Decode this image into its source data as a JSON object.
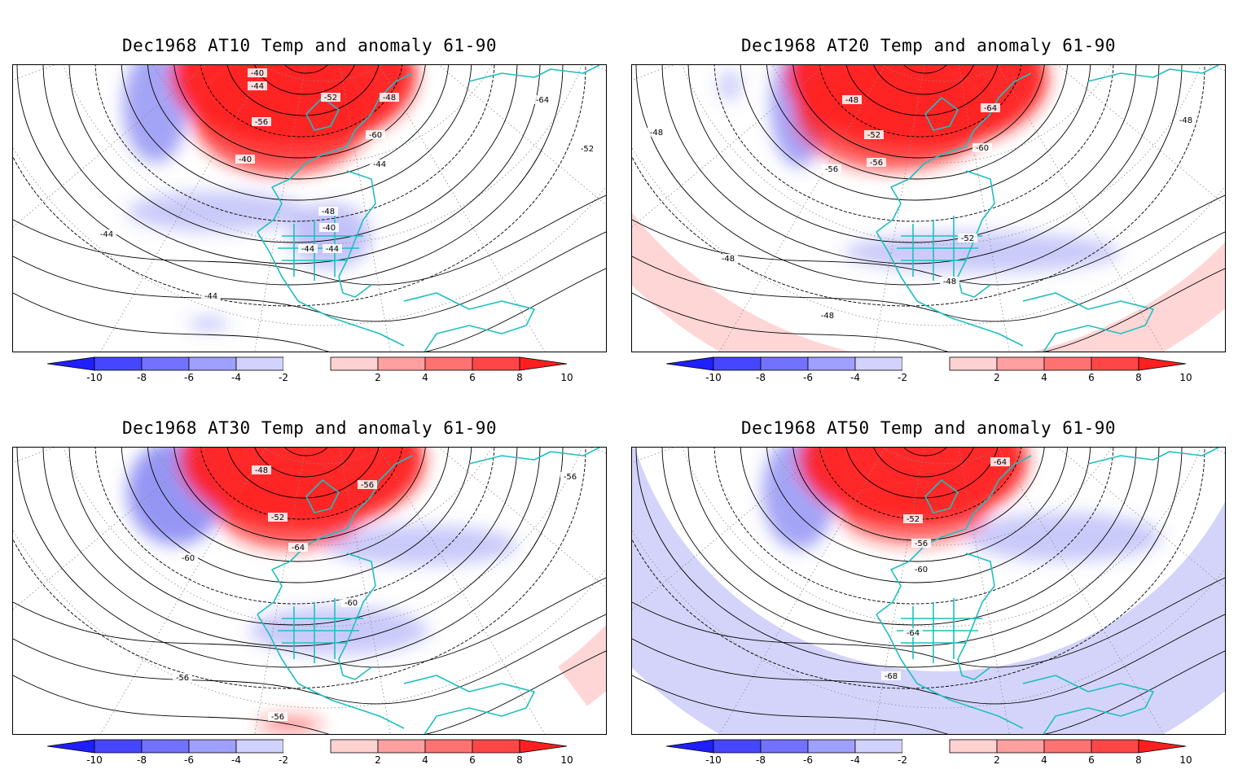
{
  "figure": {
    "panels": [
      {
        "title": "Dec1968 AT10 Temp and anomaly 61-90",
        "contour_labels": [
          "-40",
          "-44",
          "-48",
          "-52",
          "-56",
          "-60",
          "-64",
          "-40",
          "-44",
          "-52",
          "-48",
          "-40",
          "-44",
          "-44",
          "-44",
          "-44"
        ]
      },
      {
        "title": "Dec1968 AT20 Temp and anomaly 61-90",
        "contour_labels": [
          "-48",
          "-52",
          "-56",
          "-60",
          "-64",
          "-48",
          "-48",
          "-56",
          "-52",
          "-48",
          "-48",
          "-48"
        ]
      },
      {
        "title": "Dec1968 AT30 Temp and anomaly 61-90",
        "contour_labels": [
          "-48",
          "-52",
          "-56",
          "-64",
          "-60",
          "-60",
          "-56",
          "-56",
          "-56"
        ]
      },
      {
        "title": "Dec1968 AT50 Temp and anomaly 61-90",
        "contour_labels": [
          "-64",
          "-52",
          "-56",
          "-60",
          "-64",
          "-68"
        ]
      }
    ],
    "colorbar": {
      "tick_labels": [
        "-10",
        "-8",
        "-6",
        "-4",
        "-2",
        "2",
        "4",
        "6",
        "8",
        "10"
      ],
      "colors": [
        "#1f1fff",
        "#4646ff",
        "#7272ff",
        "#9f9fff",
        "#d2d2ff",
        "#ffffff",
        "#ffd2d2",
        "#ff9f9f",
        "#ff7272",
        "#ff4646",
        "#ff1f1f"
      ]
    },
    "colors": {
      "coastline": "#1fbfbf",
      "warm_anomaly": "#ff2020",
      "cold_anomaly": "#6868f0",
      "contour": "#000000",
      "grid": "#888888"
    }
  }
}
